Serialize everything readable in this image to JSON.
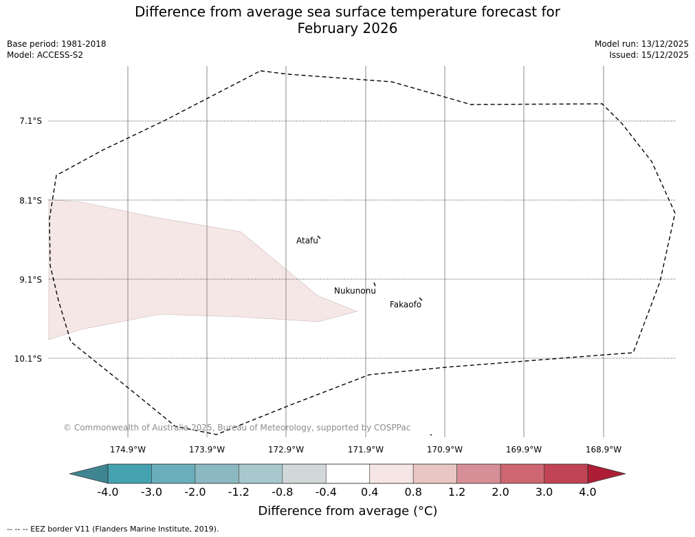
{
  "title_line1": "Difference from average sea surface temperature forecast for",
  "title_line2": "February 2026",
  "base_period": "Base period: 1981-2018",
  "model": "Model: ACCESS-S2",
  "model_run": "Model run: 13/12/2025",
  "issued": "Issued: 15/12/2025",
  "lat_labels": [
    "7.1°S",
    "8.1°S",
    "9.1°S",
    "10.1°S"
  ],
  "lon_labels": [
    "174.9°W",
    "173.9°W",
    "172.9°W",
    "171.9°W",
    "170.9°W",
    "169.9°W",
    "168.9°W"
  ],
  "places": [
    "Atafu",
    "Nukunonu",
    "Fakaofo"
  ],
  "copyright": "© Commonwealth of Australia 2025, Bureau of Meteorology, supported by COSPPac",
  "colorbar": {
    "ticks": [
      "-4.0",
      "-3.0",
      "-2.0",
      "-1.2",
      "-0.8",
      "-0.4",
      "0.4",
      "0.8",
      "1.2",
      "2.0",
      "3.0",
      "4.0"
    ],
    "colors": [
      "#3e8591",
      "#45a3b1",
      "#6baebb",
      "#8cb9c1",
      "#a9c8cd",
      "#d2d8da",
      "#ffffff",
      "#f5e6e5",
      "#e8c6c3",
      "#d68f96",
      "#cd6670",
      "#c14454",
      "#ad1e36"
    ],
    "label": "Difference from average (°C)"
  },
  "footer": "--  --  -- EEZ border V11 (Flanders Marine Institute, 2019)."
}
